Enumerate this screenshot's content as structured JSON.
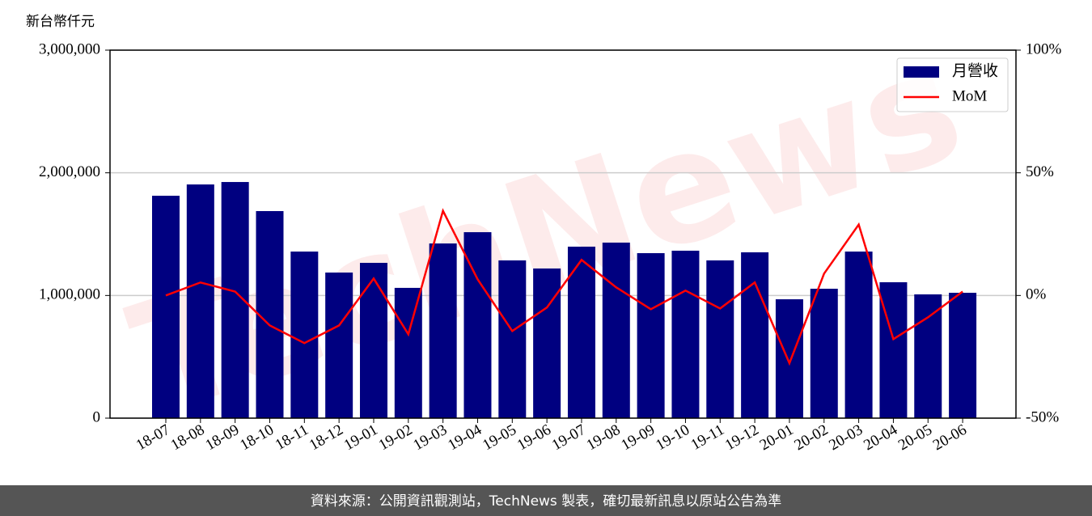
{
  "chart_data": {
    "type": "bar",
    "y_label": "新台幣仟元",
    "watermark": "TechNews",
    "footer": "資料來源：公開資訊觀測站，TechNews 製表，確切最新訊息以原站公告為準",
    "categories": [
      "18-07",
      "18-08",
      "18-09",
      "18-10",
      "18-11",
      "18-12",
      "19-01",
      "19-02",
      "19-03",
      "19-04",
      "19-05",
      "19-06",
      "19-07",
      "19-08",
      "19-09",
      "19-10",
      "19-11",
      "19-12",
      "20-01",
      "20-02",
      "20-03",
      "20-04",
      "20-05",
      "20-06"
    ],
    "series": [
      {
        "name": "月營收",
        "type": "bar",
        "color": "#000080",
        "values": [
          1813000,
          1905000,
          1925000,
          1688000,
          1358000,
          1187000,
          1266000,
          1062000,
          1424000,
          1516000,
          1286000,
          1220000,
          1398000,
          1431000,
          1345000,
          1365000,
          1286000,
          1352000,
          969000,
          1055000,
          1358000,
          1108000,
          1009000,
          1022000
        ]
      },
      {
        "name": "MoM",
        "type": "line",
        "color": "#ff0000",
        "axis": "y2",
        "values": [
          0,
          5.3,
          1.6,
          -12.2,
          -19.4,
          -12.2,
          6.9,
          -15.8,
          34.5,
          6.6,
          -14.5,
          -4.9,
          14.5,
          3.3,
          -5.6,
          2.0,
          -5.3,
          5.3,
          -27.6,
          8.9,
          28.9,
          -17.8,
          -8.9,
          1.6
        ]
      }
    ],
    "ylim": [
      0,
      3000000
    ],
    "yticks": [
      0,
      {
        "value": 1000000,
        "label": "1,000,000"
      },
      {
        "value": 2000000,
        "label": "2,000,000"
      },
      {
        "value": 3000000,
        "label": "3,000,000"
      }
    ],
    "y2lim": [
      -50,
      100
    ],
    "y2ticks": [
      {
        "value": -50,
        "label": "-50%"
      },
      {
        "value": 0,
        "label": "0%"
      },
      {
        "value": 50,
        "label": "50%"
      },
      {
        "value": 100,
        "label": "100%"
      }
    ],
    "grid": true,
    "legend": "upper right"
  }
}
